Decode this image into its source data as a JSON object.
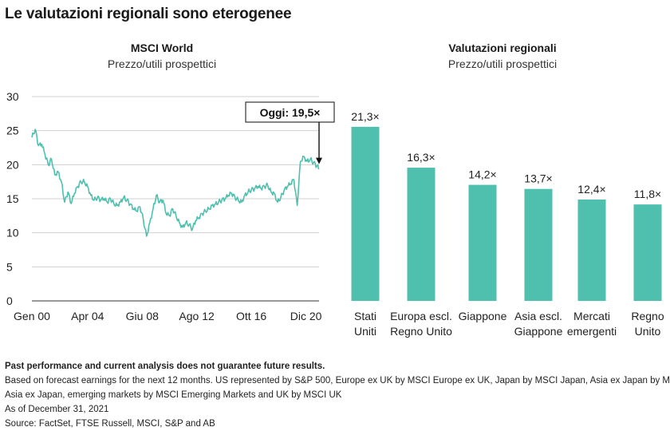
{
  "title": "Le valutazioni regionali sono eterogenee",
  "chart_data": [
    {
      "type": "line",
      "title": "MSCI World",
      "subtitle": "Prezzo/utili prospettici",
      "ylim": [
        0,
        30
      ],
      "yticks": [
        "0",
        "5",
        "10",
        "15",
        "20",
        "25",
        "30"
      ],
      "xticks": [
        "Gen 00",
        "Apr 04",
        "Giu 08",
        "Ago 12",
        "Ott 16",
        "Dic 20"
      ],
      "grid": true,
      "color": "#4fbfae",
      "annotation": "Oggi: 19,5×",
      "x": [
        2000.0,
        2000.25,
        2000.5,
        2000.75,
        2001.0,
        2001.25,
        2001.5,
        2001.75,
        2002.0,
        2002.25,
        2002.5,
        2002.75,
        2003.0,
        2003.25,
        2003.5,
        2003.75,
        2004.0,
        2004.25,
        2004.5,
        2004.75,
        2005.0,
        2005.25,
        2005.5,
        2005.75,
        2006.0,
        2006.25,
        2006.5,
        2006.75,
        2007.0,
        2007.25,
        2007.5,
        2007.75,
        2008.0,
        2008.25,
        2008.5,
        2008.75,
        2009.0,
        2009.25,
        2009.5,
        2009.75,
        2010.0,
        2010.25,
        2010.5,
        2010.75,
        2011.0,
        2011.25,
        2011.5,
        2011.75,
        2012.0,
        2012.25,
        2012.5,
        2012.75,
        2013.0,
        2013.25,
        2013.5,
        2013.75,
        2014.0,
        2014.25,
        2014.5,
        2014.75,
        2015.0,
        2015.25,
        2015.5,
        2015.75,
        2016.0,
        2016.25,
        2016.5,
        2016.75,
        2017.0,
        2017.25,
        2017.5,
        2017.75,
        2018.0,
        2018.25,
        2018.5,
        2018.75,
        2019.0,
        2019.25,
        2019.5,
        2019.75,
        2020.0,
        2020.25,
        2020.5,
        2020.75,
        2021.0,
        2021.25,
        2021.5,
        2021.75,
        2021.92
      ],
      "y": [
        24.0,
        25.2,
        22.8,
        23.0,
        21.5,
        20.0,
        20.8,
        18.5,
        19.0,
        17.5,
        14.5,
        16.0,
        14.3,
        15.8,
        16.8,
        17.5,
        17.5,
        16.8,
        15.5,
        14.8,
        15.2,
        14.8,
        15.0,
        14.5,
        15.0,
        14.3,
        14.0,
        14.5,
        15.2,
        14.8,
        14.2,
        13.5,
        13.2,
        13.8,
        12.0,
        9.5,
        11.5,
        13.5,
        15.5,
        14.5,
        14.8,
        12.8,
        12.5,
        13.5,
        12.5,
        11.5,
        10.8,
        11.5,
        11.2,
        10.5,
        11.8,
        12.2,
        12.8,
        13.2,
        13.5,
        14.0,
        14.2,
        14.5,
        14.8,
        15.0,
        15.5,
        15.8,
        15.2,
        14.8,
        14.5,
        15.5,
        16.0,
        16.3,
        16.5,
        16.8,
        16.5,
        16.8,
        17.0,
        16.0,
        15.8,
        14.5,
        15.2,
        16.2,
        16.8,
        17.2,
        17.8,
        14.0,
        20.5,
        21.2,
        20.5,
        20.8,
        20.3,
        19.8,
        19.5
      ]
    },
    {
      "type": "bar",
      "title": "Valutazioni regionali",
      "subtitle": "Prezzo/utili prospettici",
      "ylim": [
        0,
        25
      ],
      "color": "#4fbfae",
      "categories": [
        [
          "Stati",
          "Uniti"
        ],
        [
          "Europa escl.",
          "Regno Unito"
        ],
        [
          "Giappone"
        ],
        [
          "Asia escl.",
          "Giappone"
        ],
        [
          "Mercati",
          "emergenti"
        ],
        [
          "Regno",
          "Unito"
        ]
      ],
      "values": [
        21.3,
        16.3,
        14.2,
        13.7,
        12.4,
        11.8
      ],
      "labels": [
        "21,3×",
        "16,3×",
        "14,2×",
        "13,7×",
        "12,4×",
        "11,8×"
      ]
    }
  ],
  "footer": {
    "disclaimer": "Past performance and current analysis does not guarantee future results.",
    "note1": "Based on forecast earnings for the next 12 months. US represented by S&P 500, Europe ex UK by MSCI Europe ex UK, Japan by MSCI Japan, Asia ex Japan by MSCI",
    "note2": "Asia ex Japan, emerging markets by MSCI Emerging Markets and UK by MSCI UK",
    "asof": "As of December 31, 2021",
    "source": "Source: FactSet, FTSE Russell, MSCI, S&P and AB"
  }
}
